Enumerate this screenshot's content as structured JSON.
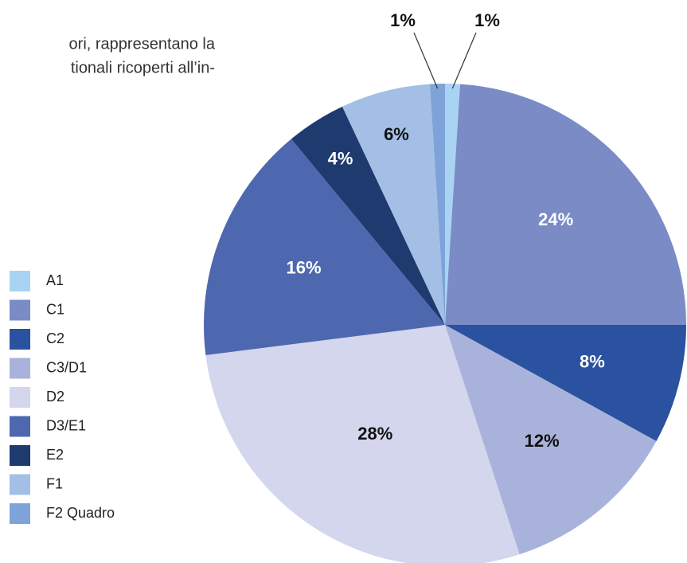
{
  "text": {
    "lines": [
      "ori, rappresentano la",
      "tionali ricoperti all’in-"
    ]
  },
  "chart_data": {
    "type": "pie",
    "categories": [
      "A1",
      "C1",
      "C2",
      "C3/D1",
      "D2",
      "D3/E1",
      "E2",
      "F1",
      "F2 Quadro"
    ],
    "values": [
      1,
      24,
      8,
      12,
      28,
      16,
      4,
      6,
      1
    ],
    "value_labels": [
      "1%",
      "24%",
      "8%",
      "12%",
      "28%",
      "16%",
      "4%",
      "6%",
      "1%"
    ],
    "colors": [
      "#a9d3f3",
      "#7b8bc6",
      "#2a52a0",
      "#a9b2da",
      "#d4d6ee",
      "#4e68b0",
      "#1f3a6e",
      "#a4bfe6",
      "#7ea3d9"
    ],
    "legend": "left"
  }
}
